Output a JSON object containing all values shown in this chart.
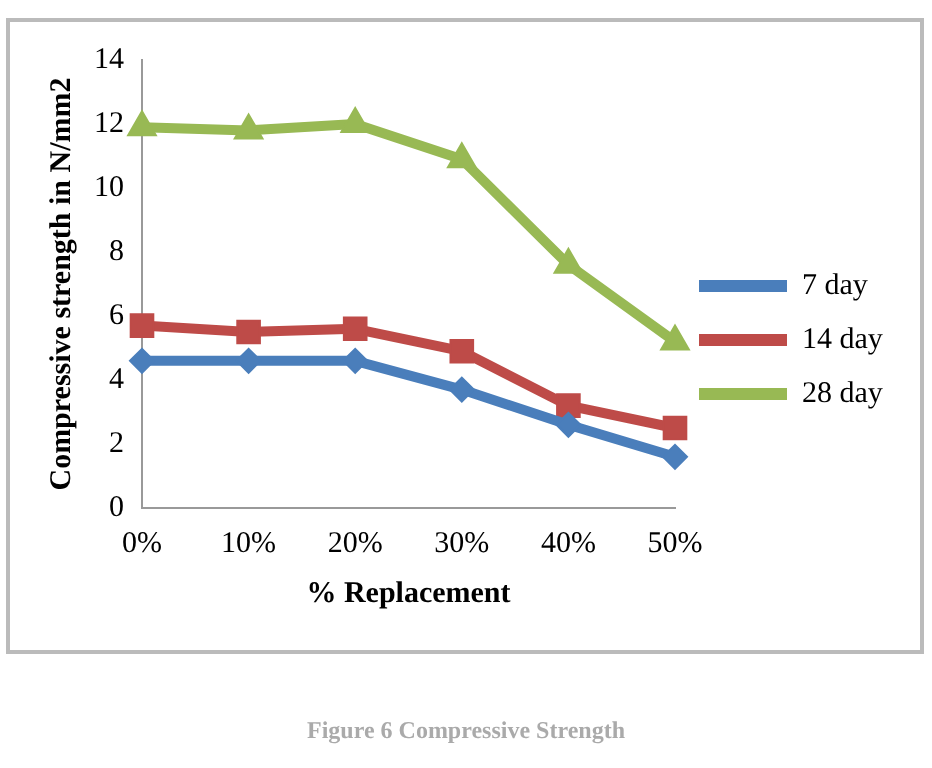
{
  "chart_data": {
    "type": "line",
    "xlabel": "% Replacement",
    "ylabel": "Compressive strength in N/mm2",
    "categories": [
      "0%",
      "10%",
      "20%",
      "30%",
      "40%",
      "50%"
    ],
    "series": [
      {
        "name": "7 day",
        "color": "#4a7ebb",
        "marker": "diamond",
        "values": [
          4.6,
          4.6,
          4.6,
          3.7,
          2.6,
          1.6
        ]
      },
      {
        "name": "14 day",
        "color": "#be4b48",
        "marker": "square",
        "values": [
          5.7,
          5.5,
          5.6,
          4.9,
          3.2,
          2.5
        ]
      },
      {
        "name": "28 day",
        "color": "#98b954",
        "marker": "triangle",
        "values": [
          11.9,
          11.8,
          12.0,
          10.9,
          7.6,
          5.2
        ]
      }
    ],
    "ylim": [
      0,
      14
    ],
    "yticks": [
      0,
      2,
      4,
      6,
      8,
      10,
      12,
      14
    ],
    "grid": false,
    "legend": "right",
    "annotations": [
      "Figure 6 Compressive Strength"
    ]
  }
}
